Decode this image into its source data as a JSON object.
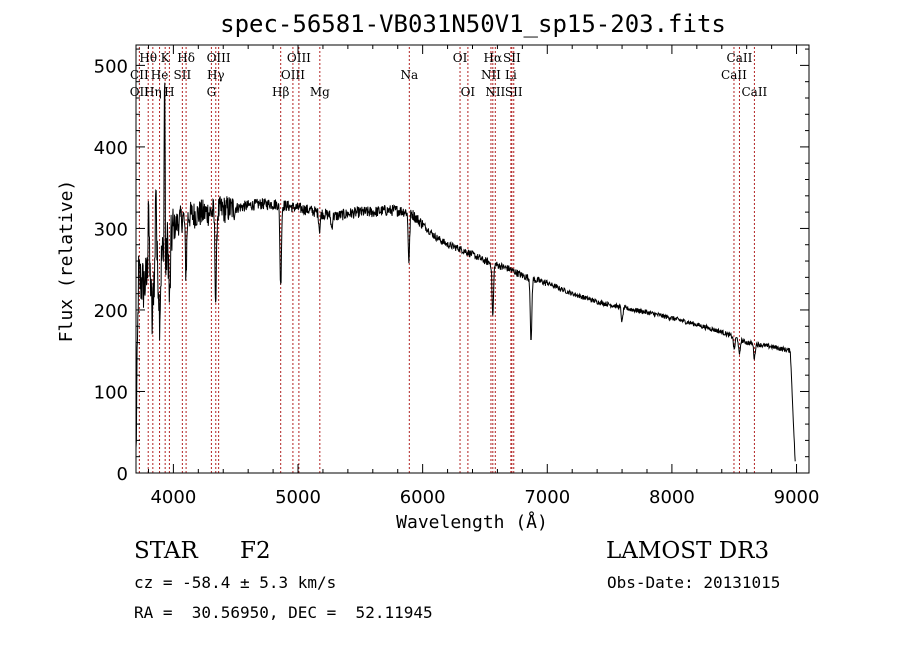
{
  "chart_data": {
    "type": "line",
    "title": "spec-56581-VB031N50V1_sp15-203.fits",
    "xlabel": "Wavelength (Å)",
    "ylabel": "Flux (relative)",
    "xlim": [
      3700,
      9100
    ],
    "ylim": [
      0,
      525
    ],
    "xticks": [
      4000,
      5000,
      6000,
      7000,
      8000,
      9000
    ],
    "yticks": [
      0,
      100,
      200,
      300,
      400,
      500
    ],
    "xtick_labels": [
      "4000",
      "5000",
      "6000",
      "7000",
      "8000",
      "9000"
    ],
    "ytick_labels": [
      "0",
      "100",
      "200",
      "300",
      "400",
      "500"
    ],
    "continuum": {
      "x": [
        3700,
        3720,
        3760,
        3800,
        3850,
        3900,
        3950,
        4000,
        4050,
        4100,
        4200,
        4300,
        4400,
        4500,
        4600,
        4700,
        4800,
        4900,
        5000,
        5100,
        5200,
        5300,
        5400,
        5500,
        5600,
        5700,
        5800,
        5900,
        6000,
        6100,
        6200,
        6300,
        6400,
        6500,
        6600,
        6700,
        6800,
        6900,
        7000,
        7200,
        7400,
        7600,
        7800,
        8000,
        8200,
        8400,
        8600,
        8800,
        8950,
        8990
      ],
      "y": [
        20,
        240,
        230,
        240,
        245,
        260,
        280,
        300,
        310,
        315,
        318,
        320,
        323,
        325,
        328,
        330,
        330,
        328,
        325,
        322,
        318,
        315,
        318,
        320,
        320,
        322,
        322,
        320,
        305,
        290,
        280,
        275,
        268,
        260,
        255,
        250,
        242,
        237,
        233,
        220,
        210,
        203,
        197,
        190,
        182,
        173,
        160,
        155,
        150,
        10
      ]
    },
    "absorption_lines": [
      {
        "x": 3830,
        "depth": 60
      },
      {
        "x": 3890,
        "depth": 60
      },
      {
        "x": 3933,
        "depth": 90
      },
      {
        "x": 3970,
        "depth": 80
      },
      {
        "x": 4101,
        "depth": 70
      },
      {
        "x": 4340,
        "depth": 110
      },
      {
        "x": 4861,
        "depth": 100
      },
      {
        "x": 5173,
        "depth": 20
      },
      {
        "x": 5270,
        "depth": 15
      },
      {
        "x": 5890,
        "depth": 60
      },
      {
        "x": 6563,
        "depth": 65
      },
      {
        "x": 6870,
        "depth": 80
      },
      {
        "x": 7600,
        "depth": 18
      },
      {
        "x": 8500,
        "depth": 15
      },
      {
        "x": 8542,
        "depth": 20
      },
      {
        "x": 8662,
        "depth": 18
      }
    ],
    "emission_spikes": [
      {
        "x": 3800,
        "height": 110
      },
      {
        "x": 3860,
        "height": 120
      },
      {
        "x": 3930,
        "height": 300
      }
    ],
    "line_markers": [
      {
        "label": "Hθ",
        "x": 3798,
        "row": 0
      },
      {
        "label": "K",
        "x": 3934,
        "row": 0
      },
      {
        "label": "Hδ",
        "x": 4102,
        "row": 0
      },
      {
        "label": "OIII",
        "x": 4363,
        "row": 0
      },
      {
        "label": "OIII",
        "x": 5007,
        "row": 0
      },
      {
        "label": "OI",
        "x": 6300,
        "row": 0
      },
      {
        "label": "Hα",
        "x": 6563,
        "row": 0
      },
      {
        "label": "SII",
        "x": 6716,
        "row": 0
      },
      {
        "label": "CaII",
        "x": 8542,
        "row": 0
      },
      {
        "label": "CII",
        "x": 3727,
        "row": 1
      },
      {
        "label": "He",
        "x": 3889,
        "row": 1
      },
      {
        "label": "SII",
        "x": 4072,
        "row": 1
      },
      {
        "label": "Hγ",
        "x": 4340,
        "row": 1
      },
      {
        "label": "OIII",
        "x": 4959,
        "row": 1
      },
      {
        "label": "Na",
        "x": 5893,
        "row": 1
      },
      {
        "label": "NII",
        "x": 6548,
        "row": 1
      },
      {
        "label": "Li",
        "x": 6708,
        "row": 1
      },
      {
        "label": "CaII",
        "x": 8498,
        "row": 1
      },
      {
        "label": "OII",
        "x": 3727,
        "row": 2
      },
      {
        "label": "Hη",
        "x": 3835,
        "row": 2
      },
      {
        "label": "H",
        "x": 3968,
        "row": 2
      },
      {
        "label": "G",
        "x": 4305,
        "row": 2
      },
      {
        "label": "Hβ",
        "x": 4861,
        "row": 2
      },
      {
        "label": "Mg",
        "x": 5175,
        "row": 2
      },
      {
        "label": "OI",
        "x": 6363,
        "row": 2
      },
      {
        "label": "NII",
        "x": 6583,
        "row": 2
      },
      {
        "label": "SII",
        "x": 6731,
        "row": 2
      },
      {
        "label": "CaII",
        "x": 8662,
        "row": 2
      }
    ],
    "marker_lines_x": [
      3727,
      3798,
      3835,
      3889,
      3934,
      3968,
      4072,
      4102,
      4305,
      4340,
      4363,
      4861,
      4959,
      5007,
      5175,
      5893,
      6300,
      6363,
      6548,
      6563,
      6583,
      6708,
      6716,
      6731,
      8498,
      8542,
      8662
    ]
  },
  "info": {
    "object_type": "STAR",
    "subclass": "F2",
    "survey": "LAMOST DR3",
    "redshift": "cz = -58.4 ± 5.3 km/s",
    "obs_date": "Obs-Date: 20131015",
    "coords": "RA =  30.56950, DEC =  52.11945"
  },
  "colors": {
    "spectrum": "#000000",
    "marker": "#b22222",
    "axis": "#000000"
  }
}
